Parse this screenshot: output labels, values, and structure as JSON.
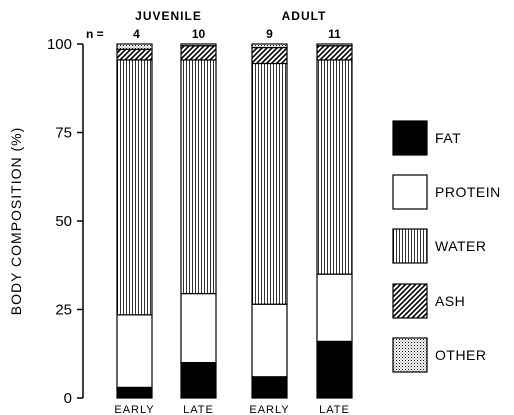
{
  "chart_data": {
    "type": "bar",
    "stacked": true,
    "title": "",
    "xlabel": "",
    "ylabel": "BODY COMPOSITION (%)",
    "ylim": [
      0,
      100
    ],
    "yticks": [
      "0",
      "25",
      "50",
      "75",
      "100"
    ],
    "groups": [
      {
        "label": "JUVENILE",
        "members": [
          0,
          1
        ]
      },
      {
        "label": "ADULT",
        "members": [
          2,
          3
        ]
      }
    ],
    "n_prefix": "n =",
    "n_values": [
      "4",
      "10",
      "9",
      "11"
    ],
    "categories": [
      "EARLY",
      "LATE",
      "EARLY",
      "LATE"
    ],
    "series": [
      {
        "name": "FAT",
        "values": [
          3,
          10,
          6,
          16
        ],
        "pattern": "solid-black"
      },
      {
        "name": "PROTEIN",
        "values": [
          20.5,
          19.5,
          20.5,
          19
        ],
        "pattern": "white"
      },
      {
        "name": "WATER",
        "values": [
          72,
          66,
          68,
          60.5
        ],
        "pattern": "vertical-lines"
      },
      {
        "name": "ASH",
        "values": [
          3,
          4,
          4.5,
          4
        ],
        "pattern": "diagonal-hatch"
      },
      {
        "name": "OTHER",
        "values": [
          1.5,
          0.5,
          1,
          0.5
        ],
        "pattern": "dotted"
      }
    ],
    "legend_order": [
      "OTHER",
      "ASH",
      "WATER",
      "PROTEIN",
      "FAT"
    ],
    "grid": false,
    "legend": "right"
  }
}
